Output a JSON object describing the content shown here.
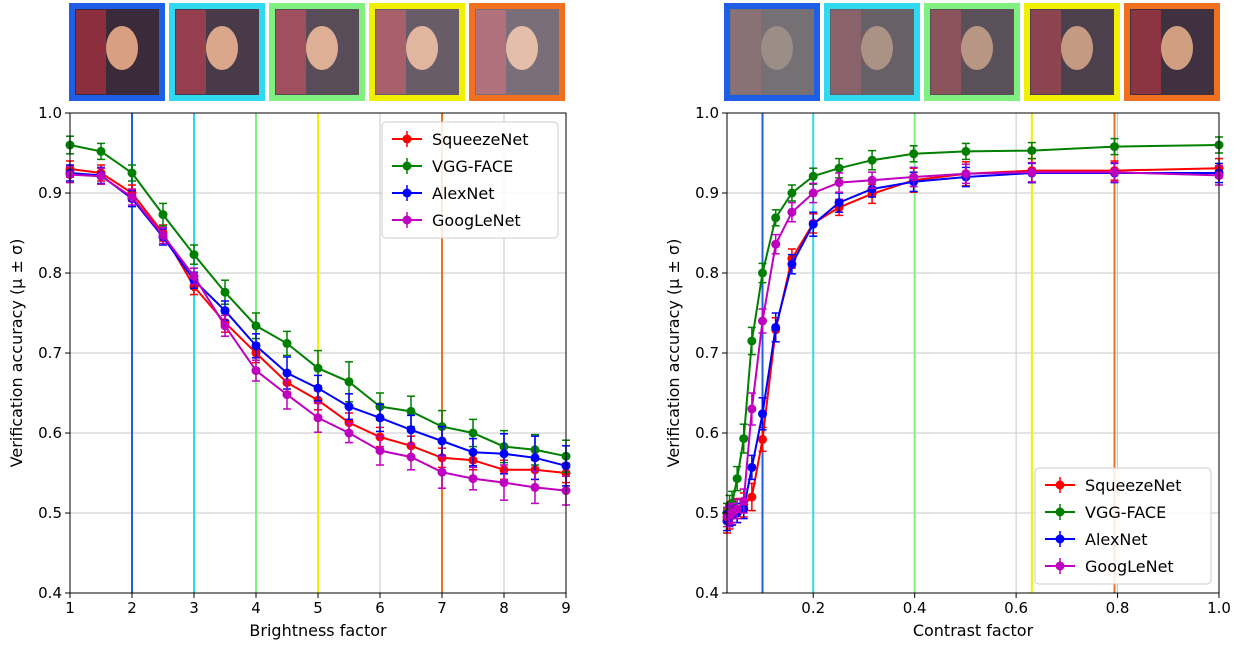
{
  "chart_data": [
    {
      "type": "line",
      "xlabel": "Brightness factor",
      "ylabel": "Verification accuracy (μ ± σ)",
      "x": [
        1,
        1.5,
        2,
        2.5,
        3,
        3.5,
        4,
        4.5,
        5,
        5.5,
        6,
        6.5,
        7,
        7.5,
        8,
        8.5,
        9
      ],
      "xlim": [
        1,
        9
      ],
      "xticks": [
        1,
        2,
        3,
        4,
        5,
        6,
        7,
        8,
        9
      ],
      "ylim": [
        0.4,
        1.0
      ],
      "yticks": [
        0.4,
        0.5,
        0.6,
        0.7,
        0.8,
        0.9,
        {
          "value": 1.0,
          "label": "1.0"
        }
      ],
      "grid": true,
      "legend": "upper right",
      "vlines": [
        {
          "x": 2,
          "color": "#1f5fe8"
        },
        {
          "x": 3,
          "color": "#30d8f0"
        },
        {
          "x": 4,
          "color": "#80f080"
        },
        {
          "x": 5,
          "color": "#f0f000"
        },
        {
          "x": 7,
          "color": "#f07020"
        }
      ],
      "series": [
        {
          "name": "SqueezeNet",
          "color": "#ff0000",
          "values": [
            0.93,
            0.925,
            0.9,
            0.85,
            0.783,
            0.738,
            0.7,
            0.663,
            0.641,
            0.613,
            0.595,
            0.584,
            0.569,
            0.566,
            0.554,
            0.554,
            0.55
          ],
          "errors": [
            0.01,
            0.01,
            0.01,
            0.01,
            0.01,
            0.012,
            0.012,
            0.012,
            0.012,
            0.012,
            0.012,
            0.012,
            0.012,
            0.012,
            0.012,
            0.012,
            0.012
          ]
        },
        {
          "name": "VGG-FACE",
          "color": "#008000",
          "values": [
            0.96,
            0.952,
            0.925,
            0.873,
            0.823,
            0.776,
            0.734,
            0.712,
            0.681,
            0.664,
            0.633,
            0.627,
            0.608,
            0.6,
            0.583,
            0.579,
            0.571
          ],
          "errors": [
            0.011,
            0.01,
            0.01,
            0.014,
            0.012,
            0.015,
            0.016,
            0.015,
            0.022,
            0.025,
            0.017,
            0.019,
            0.02,
            0.017,
            0.02,
            0.019,
            0.02
          ]
        },
        {
          "name": "AlexNet",
          "color": "#0000ff",
          "values": [
            0.925,
            0.922,
            0.893,
            0.845,
            0.791,
            0.753,
            0.709,
            0.675,
            0.656,
            0.633,
            0.619,
            0.604,
            0.59,
            0.576,
            0.574,
            0.569,
            0.559
          ],
          "errors": [
            0.01,
            0.01,
            0.01,
            0.01,
            0.01,
            0.012,
            0.015,
            0.02,
            0.016,
            0.016,
            0.017,
            0.018,
            0.018,
            0.017,
            0.025,
            0.027,
            0.025
          ]
        },
        {
          "name": "GoogLeNet",
          "color": "#bf00bf",
          "values": [
            0.923,
            0.921,
            0.895,
            0.847,
            0.796,
            0.734,
            0.678,
            0.648,
            0.619,
            0.6,
            0.578,
            0.57,
            0.551,
            0.543,
            0.538,
            0.532,
            0.528
          ],
          "errors": [
            0.01,
            0.01,
            0.01,
            0.01,
            0.01,
            0.013,
            0.013,
            0.018,
            0.018,
            0.012,
            0.018,
            0.016,
            0.02,
            0.014,
            0.022,
            0.02,
            0.018
          ]
        }
      ]
    },
    {
      "type": "line",
      "xlabel": "Contrast factor",
      "ylabel": "Verification accuracy (μ ± σ)",
      "x": [
        0.03,
        0.035,
        0.04,
        0.05,
        0.063,
        0.079,
        0.1,
        0.126,
        0.158,
        0.2,
        0.251,
        0.316,
        0.398,
        0.501,
        0.631,
        0.794,
        1.0
      ],
      "xlim": [
        0.03,
        1.0
      ],
      "xticks": [
        0.2,
        0.4,
        0.6,
        0.8,
        {
          "value": 1.0,
          "label": "1.0"
        }
      ],
      "ylim": [
        0.4,
        1.0
      ],
      "yticks": [
        0.4,
        0.5,
        0.6,
        0.7,
        0.8,
        0.9,
        {
          "value": 1.0,
          "label": "1.0"
        }
      ],
      "grid": true,
      "legend": "lower right",
      "vlines": [
        {
          "x": 0.1,
          "color": "#1f5fe8"
        },
        {
          "x": 0.2,
          "color": "#30d8f0"
        },
        {
          "x": 0.4,
          "color": "#80f080"
        },
        {
          "x": 0.631,
          "color": "#f0f000"
        },
        {
          "x": 0.794,
          "color": "#f07020"
        }
      ],
      "series": [
        {
          "name": "SqueezeNet",
          "color": "#ff0000",
          "values": [
            0.49,
            0.495,
            0.5,
            0.503,
            0.51,
            0.52,
            0.592,
            0.729,
            0.818,
            0.862,
            0.882,
            0.899,
            0.916,
            0.924,
            0.928,
            0.928,
            0.931
          ],
          "errors": [
            0.015,
            0.015,
            0.015,
            0.015,
            0.015,
            0.017,
            0.015,
            0.015,
            0.012,
            0.012,
            0.01,
            0.012,
            0.015,
            0.015,
            0.015,
            0.012,
            0.012
          ]
        },
        {
          "name": "VGG-FACE",
          "color": "#008000",
          "values": [
            0.5,
            0.51,
            0.512,
            0.543,
            0.593,
            0.715,
            0.8,
            0.869,
            0.9,
            0.921,
            0.931,
            0.941,
            0.949,
            0.952,
            0.953,
            0.958,
            0.96
          ],
          "errors": [
            0.012,
            0.012,
            0.015,
            0.015,
            0.018,
            0.017,
            0.012,
            0.01,
            0.01,
            0.01,
            0.012,
            0.012,
            0.01,
            0.01,
            0.01,
            0.01,
            0.01
          ]
        },
        {
          "name": "AlexNet",
          "color": "#0000ff",
          "values": [
            0.49,
            0.495,
            0.497,
            0.5,
            0.505,
            0.557,
            0.624,
            0.732,
            0.811,
            0.861,
            0.888,
            0.905,
            0.914,
            0.92,
            0.925,
            0.925,
            0.925
          ],
          "errors": [
            0.012,
            0.012,
            0.012,
            0.012,
            0.012,
            0.015,
            0.02,
            0.018,
            0.012,
            0.015,
            0.012,
            0.01,
            0.012,
            0.012,
            0.012,
            0.012,
            0.012
          ]
        },
        {
          "name": "GoogLeNet",
          "color": "#bf00bf",
          "values": [
            0.495,
            0.498,
            0.5,
            0.505,
            0.515,
            0.63,
            0.74,
            0.836,
            0.876,
            0.9,
            0.913,
            0.916,
            0.92,
            0.924,
            0.926,
            0.926,
            0.922
          ],
          "errors": [
            0.012,
            0.012,
            0.012,
            0.012,
            0.015,
            0.02,
            0.015,
            0.012,
            0.012,
            0.012,
            0.012,
            0.01,
            0.012,
            0.012,
            0.012,
            0.012,
            0.012
          ]
        }
      ]
    }
  ]
}
